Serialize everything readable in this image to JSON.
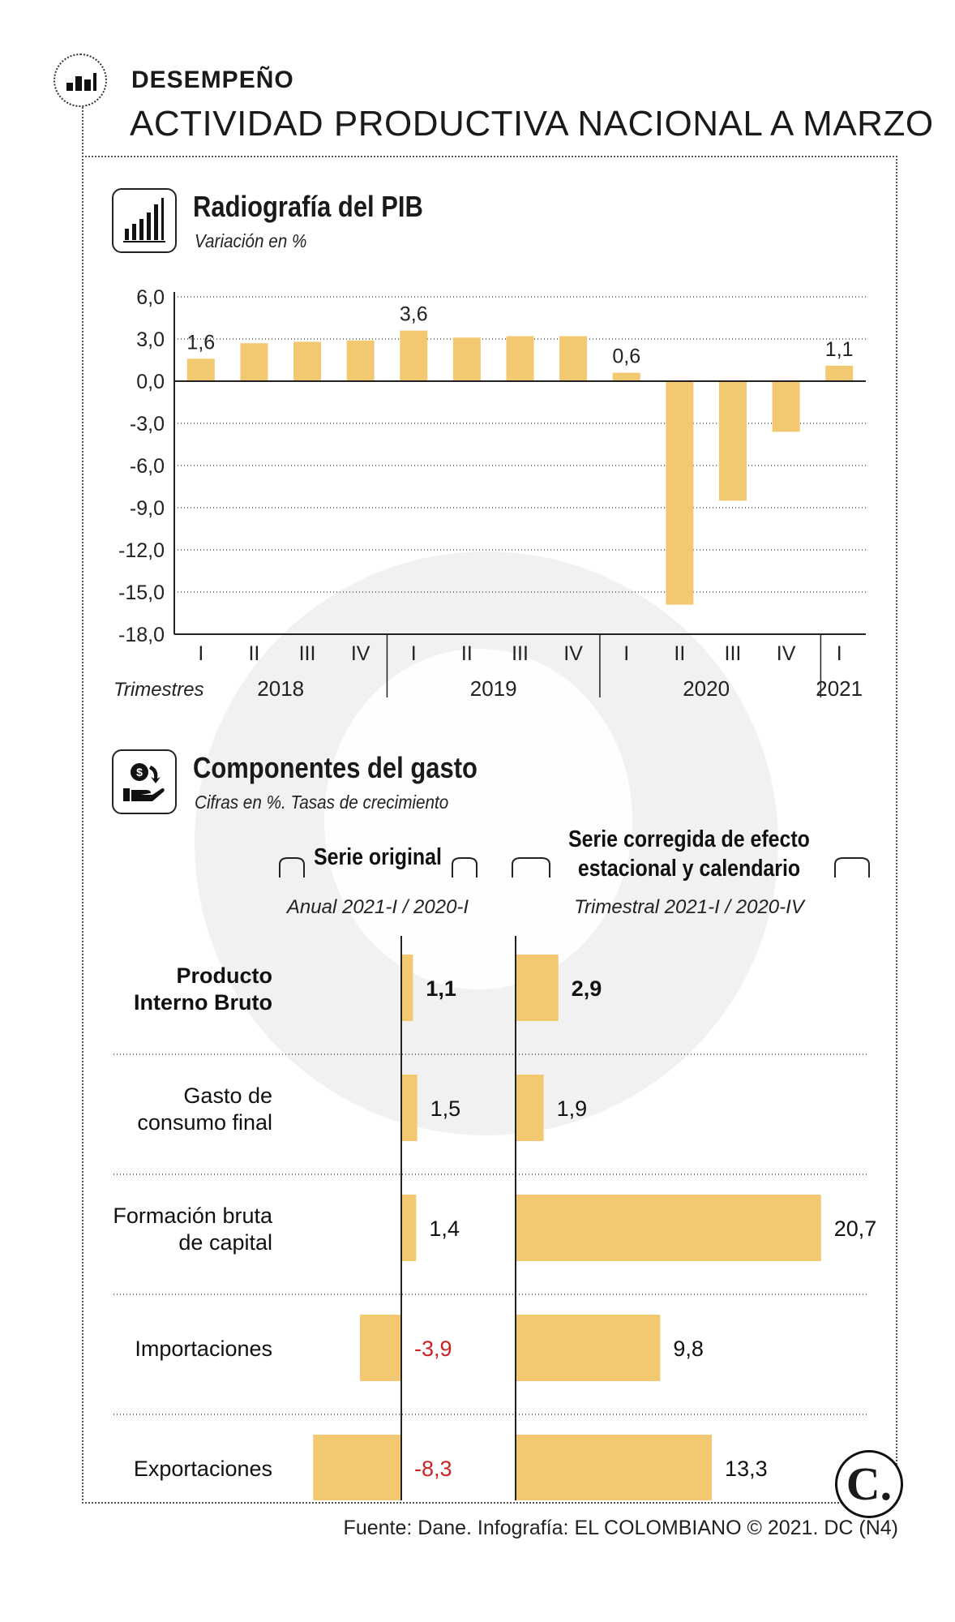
{
  "header": {
    "kicker": "DESEMPEÑO",
    "headline": "ACTIVIDAD PRODUCTIVA NACIONAL A MARZO"
  },
  "section1": {
    "title": "Radiografía del PIB",
    "subtitle": "Variación en %"
  },
  "section2": {
    "title": "Componentes del gasto",
    "subtitle": "Cifras en %. Tasas de crecimiento",
    "col1_title": "Serie original",
    "col1_sub": "Anual 2021-I / 2020-I",
    "col2_title_line1": "Serie corregida de efecto",
    "col2_title_line2": "estacional y calendario",
    "col2_sub": "Trimestral 2021-I / 2020-IV"
  },
  "colors": {
    "bar": "#f2c870",
    "negative_label": "#cc2222",
    "axis": "#222222"
  },
  "chart_data": [
    {
      "type": "bar",
      "title": "Radiografía del PIB",
      "ylabel": "Variación en %",
      "xlabel": "Trimestres",
      "ylim": [
        -18,
        6
      ],
      "yticks": [
        "6,0",
        "3,0",
        "0,0",
        "-3,0",
        "-6,0",
        "-9,0",
        "-12,0",
        "-15,0",
        "-18,0"
      ],
      "ytick_values": [
        6,
        3,
        0,
        -3,
        -6,
        -9,
        -12,
        -15,
        -18
      ],
      "categories": [
        "I",
        "II",
        "III",
        "IV",
        "I",
        "II",
        "III",
        "IV",
        "I",
        "II",
        "III",
        "IV",
        "I"
      ],
      "years": [
        {
          "label": "2018",
          "count": 4
        },
        {
          "label": "2019",
          "count": 4
        },
        {
          "label": "2020",
          "count": 4
        },
        {
          "label": "2021",
          "count": 1
        }
      ],
      "values": [
        1.6,
        2.7,
        2.8,
        2.9,
        3.6,
        3.1,
        3.2,
        3.2,
        0.6,
        -15.9,
        -8.5,
        -3.6,
        1.1
      ],
      "value_labels": [
        "1,6",
        "",
        "",
        "",
        "3,6",
        "",
        "",
        "",
        "0,6",
        "",
        "",
        "",
        "1,1"
      ],
      "grid": true
    },
    {
      "type": "bar",
      "title": "Componentes del gasto",
      "categories": [
        {
          "line1": "Producto",
          "line2": "Interno Bruto",
          "bold": true
        },
        {
          "line1": "Gasto de",
          "line2": "consumo final",
          "bold": false
        },
        {
          "line1": "Formación bruta",
          "line2": "de capital",
          "bold": false
        },
        {
          "line1": "Importaciones",
          "line2": "",
          "bold": false
        },
        {
          "line1": "Exportaciones",
          "line2": "",
          "bold": false
        }
      ],
      "series": [
        {
          "name": "Serie original (Anual 2021-I / 2020-I)",
          "values": [
            1.1,
            1.5,
            1.4,
            -3.9,
            -8.3
          ],
          "labels": [
            "1,1",
            "1,5",
            "1,4",
            "-3,9",
            "-8,3"
          ]
        },
        {
          "name": "Serie corregida de efecto estacional y calendario (Trimestral 2021-I / 2020-IV)",
          "values": [
            2.9,
            1.9,
            20.7,
            9.8,
            13.3
          ],
          "labels": [
            "2,9",
            "1,9",
            "20,7",
            "9,8",
            "13,3"
          ]
        }
      ]
    }
  ],
  "footer": {
    "source": "Fuente: Dane. Infografía: EL COLOMBIANO © 2021. DC (N4)",
    "logo": "C."
  }
}
